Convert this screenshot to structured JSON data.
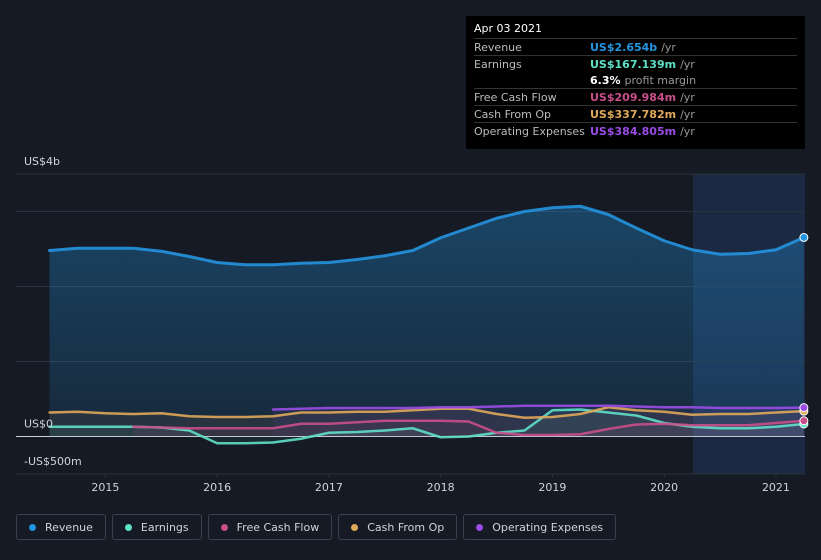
{
  "chart_data": {
    "type": "line",
    "x": [
      2014.5,
      2014.75,
      2015,
      2015.25,
      2015.5,
      2015.75,
      2016,
      2016.25,
      2016.5,
      2016.75,
      2017,
      2017.25,
      2017.5,
      2017.75,
      2018,
      2018.25,
      2018.5,
      2018.75,
      2019,
      2019.25,
      2019.5,
      2019.75,
      2020,
      2020.25,
      2020.5,
      2020.75,
      2021,
      2021.25
    ],
    "xlim": [
      2014.2,
      2021.26
    ],
    "xticks": [
      2015,
      2016,
      2017,
      2018,
      2019,
      2020,
      2021
    ],
    "ylim": [
      -0.5,
      3.5
    ],
    "yticks": [
      {
        "value": 3.5,
        "label": "US$4b"
      },
      {
        "value": 3,
        "label": null
      },
      {
        "value": 2,
        "label": null
      },
      {
        "value": 1,
        "label": null
      },
      {
        "value": 0,
        "label": "US$0"
      },
      {
        "value": -0.5,
        "label": "-US$500m"
      }
    ],
    "grid": true,
    "series": [
      {
        "name": "Revenue",
        "color": "#2394df",
        "values": [
          2.48,
          2.51,
          2.51,
          2.51,
          2.47,
          2.4,
          2.32,
          2.29,
          2.29,
          2.31,
          2.32,
          2.36,
          2.41,
          2.48,
          2.65,
          2.78,
          2.91,
          3.0,
          3.05,
          3.07,
          2.96,
          2.78,
          2.61,
          2.49,
          2.43,
          2.44,
          2.49,
          2.654
        ]
      },
      {
        "name": "Earnings",
        "color": "#5fe0c8",
        "values": [
          0.13,
          0.13,
          0.13,
          0.13,
          0.12,
          0.08,
          -0.09,
          -0.09,
          -0.08,
          -0.03,
          0.05,
          0.06,
          0.08,
          0.11,
          -0.01,
          0.0,
          0.05,
          0.08,
          0.35,
          0.36,
          0.32,
          0.28,
          0.18,
          0.13,
          0.11,
          0.11,
          0.13,
          0.167
        ]
      },
      {
        "name": "Free Cash Flow",
        "color": "#c94f8a",
        "values": [
          null,
          null,
          null,
          0.13,
          0.12,
          0.11,
          0.11,
          0.11,
          0.11,
          0.17,
          0.17,
          0.19,
          0.21,
          0.21,
          0.21,
          0.2,
          0.05,
          0.02,
          0.02,
          0.03,
          0.1,
          0.16,
          0.17,
          0.15,
          0.15,
          0.15,
          0.18,
          0.21
        ]
      },
      {
        "name": "Cash From Op",
        "color": "#e0a95a",
        "values": [
          0.32,
          0.33,
          0.31,
          0.3,
          0.31,
          0.27,
          0.26,
          0.26,
          0.27,
          0.32,
          0.32,
          0.33,
          0.33,
          0.35,
          0.37,
          0.37,
          0.3,
          0.25,
          0.26,
          0.3,
          0.39,
          0.35,
          0.33,
          0.29,
          0.3,
          0.3,
          0.32,
          0.338
        ]
      },
      {
        "name": "Operating Expenses",
        "color": "#9b4ce6",
        "values": [
          null,
          null,
          null,
          null,
          null,
          null,
          null,
          null,
          0.36,
          0.37,
          0.38,
          0.38,
          0.38,
          0.38,
          0.39,
          0.39,
          0.4,
          0.41,
          0.41,
          0.41,
          0.41,
          0.4,
          0.39,
          0.39,
          0.38,
          0.38,
          0.38,
          0.385
        ]
      }
    ]
  },
  "tooltip": {
    "date": "Apr 03 2021",
    "rows": [
      {
        "label": "Revenue",
        "value": "US$2.654b",
        "unit": "/yr"
      },
      {
        "label": "Earnings",
        "value": "US$167.139m",
        "unit": "/yr"
      },
      {
        "label": null,
        "value": "6.3%",
        "unit": "profit margin"
      },
      {
        "label": "Free Cash Flow",
        "value": "US$209.984m",
        "unit": "/yr"
      },
      {
        "label": "Cash From Op",
        "value": "US$337.782m",
        "unit": "/yr"
      },
      {
        "label": "Operating Expenses",
        "value": "US$384.805m",
        "unit": "/yr"
      }
    ]
  }
}
